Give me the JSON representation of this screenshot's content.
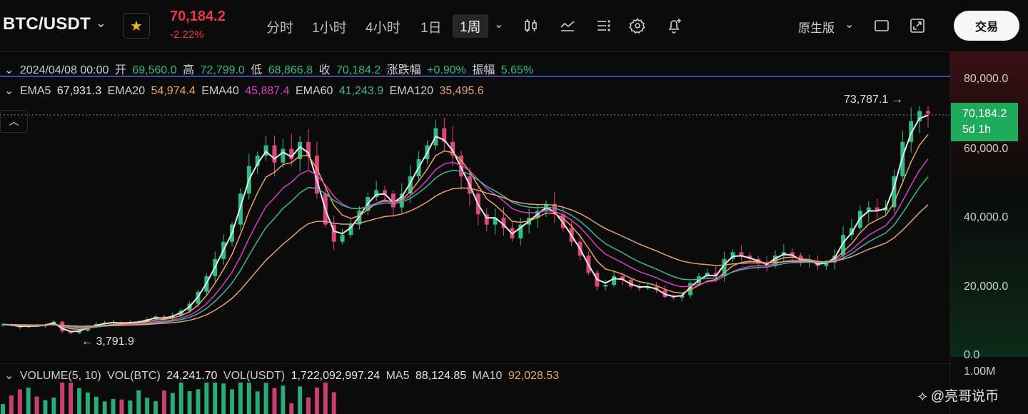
{
  "header": {
    "symbol": "BTC/USDT",
    "last_price": "70,184.2",
    "change_pct": "-2.22%",
    "timeframes": [
      "分时",
      "1小时",
      "4小时",
      "1日",
      "1周"
    ],
    "active_timeframe": "1周",
    "chart_mode": "原生版",
    "trade_label": "交易",
    "icons": [
      "candle-type-icon",
      "indicator-icon",
      "drawing-list-icon",
      "settings-icon",
      "alert-add-icon",
      "layout-icon",
      "fullscreen-icon"
    ]
  },
  "ohlc_info": {
    "datetime": "2024/04/08 00:00",
    "open_label": "开",
    "open": "69,560.0",
    "high_label": "高",
    "high": "72,799.0",
    "low_label": "低",
    "low": "68,866.8",
    "close_label": "收",
    "close": "70,184.2",
    "change_label": "涨跌幅",
    "change": "+0.90%",
    "amplitude_label": "振幅",
    "amplitude": "5.65%"
  },
  "ema_info": [
    {
      "label": "EMA5",
      "value": "67,931.3",
      "color": "#e8e8e8"
    },
    {
      "label": "EMA20",
      "value": "54,974.4",
      "color": "#f0a35c"
    },
    {
      "label": "EMA40",
      "value": "45,887.4",
      "color": "#d63ec8"
    },
    {
      "label": "EMA60",
      "value": "41,243.9",
      "color": "#3fb59d"
    },
    {
      "label": "EMA120",
      "value": "35,495.6",
      "color": "#e0a07a"
    }
  ],
  "volume_info": {
    "title": "VOLUME(5, 10)",
    "vol_btc_label": "VOL(BTC)",
    "vol_btc": "24,241.70",
    "vol_usdt_label": "VOL(USDT)",
    "vol_usdt": "1,722,092,997.24",
    "ma5_label": "MA5",
    "ma5": "88,124.85",
    "ma10_label": "MA10",
    "ma10": "92,028.53",
    "axis_max": "1.00M"
  },
  "chart_data": {
    "type": "candlestick",
    "y_ticks": [
      "80,000.0",
      "60,000.0",
      "40,000.0",
      "20,000.0",
      "0.0"
    ],
    "ylim": [
      0,
      80000
    ],
    "current_price_tag": "70,184.2",
    "countdown": "5d 1h",
    "max_marker": "73,787.1",
    "min_marker": "3,791.9",
    "close_path_approx": [
      9000,
      8800,
      8200,
      8600,
      8500,
      9000,
      9800,
      7000,
      6500,
      7200,
      8400,
      9100,
      9500,
      9700,
      9300,
      9600,
      9800,
      10500,
      11300,
      10800,
      11600,
      13000,
      15000,
      18500,
      23000,
      28000,
      33000,
      38000,
      47000,
      55000,
      58000,
      61000,
      56000,
      60000,
      57000,
      62000,
      58000,
      47000,
      38000,
      33000,
      35000,
      38000,
      42000,
      46000,
      48000,
      47000,
      43000,
      47000,
      52000,
      57000,
      61000,
      66000,
      62000,
      58000,
      52000,
      47000,
      41000,
      38000,
      40000,
      37000,
      34000,
      38000,
      40000,
      42000,
      44000,
      41000,
      37000,
      33000,
      29000,
      24000,
      20000,
      20500,
      23000,
      22000,
      20000,
      19500,
      20000,
      19000,
      17000,
      16800,
      17500,
      21000,
      23000,
      24000,
      23000,
      28000,
      30000,
      29000,
      28000,
      27000,
      26000,
      29000,
      30000,
      29000,
      27000,
      27500,
      26000,
      27000,
      29000,
      35000,
      37000,
      42000,
      43000,
      42000,
      43000,
      52000,
      62000,
      68000,
      71000,
      70184
    ]
  },
  "watermark": "@亮哥说币"
}
